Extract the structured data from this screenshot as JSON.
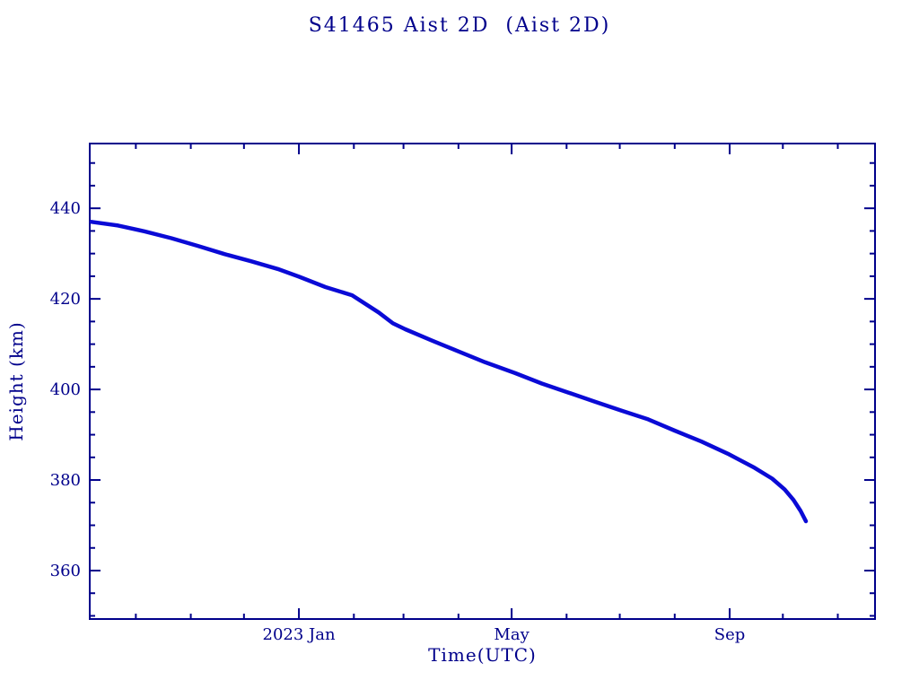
{
  "title": "S41465 Aist 2D  (Aist 2D)",
  "colors": {
    "background": "#ffffff",
    "axis": "#00008b",
    "text": "#00008b",
    "line": "#0a0ad6"
  },
  "chart_data": {
    "type": "line",
    "title": "S41465 Aist 2D  (Aist 2D)",
    "xlabel": "Time(UTC)",
    "ylabel": "Height (km)",
    "x_range": [
      "2022-09-05",
      "2023-11-22"
    ],
    "y_range": [
      349.3,
      454.3
    ],
    "y_ticks_major": [
      360,
      380,
      400,
      420,
      440
    ],
    "y_tick_minor_step": 5,
    "x_ticks_major": [
      {
        "date": "2023-01-01",
        "label": "2023 Jan"
      },
      {
        "date": "2023-05-01",
        "label": "May"
      },
      {
        "date": "2023-09-01",
        "label": "Sep"
      }
    ],
    "x_ticks_minor": [
      "2022-10-01",
      "2022-11-01",
      "2022-12-01",
      "2023-02-01",
      "2023-03-01",
      "2023-04-01",
      "2023-06-01",
      "2023-07-01",
      "2023-08-01",
      "2023-10-01",
      "2023-11-01"
    ],
    "grid": false,
    "legend": "none",
    "series": [
      {
        "name": "height_km",
        "points": [
          [
            "2022-09-06",
            437.0
          ],
          [
            "2022-09-21",
            436.2
          ],
          [
            "2022-10-06",
            434.9
          ],
          [
            "2022-10-21",
            433.4
          ],
          [
            "2022-11-05",
            431.7
          ],
          [
            "2022-11-20",
            429.9
          ],
          [
            "2022-12-05",
            428.3
          ],
          [
            "2022-12-20",
            426.6
          ],
          [
            "2023-01-01",
            424.9
          ],
          [
            "2023-01-16",
            422.6
          ],
          [
            "2023-01-31",
            420.8
          ],
          [
            "2023-02-15",
            417.0
          ],
          [
            "2023-02-23",
            414.6
          ],
          [
            "2023-03-02",
            413.3
          ],
          [
            "2023-03-17",
            410.8
          ],
          [
            "2023-04-01",
            408.4
          ],
          [
            "2023-04-16",
            406.0
          ],
          [
            "2023-05-03",
            403.6
          ],
          [
            "2023-05-18",
            401.3
          ],
          [
            "2023-06-02",
            399.3
          ],
          [
            "2023-06-17",
            397.3
          ],
          [
            "2023-07-02",
            395.3
          ],
          [
            "2023-07-17",
            393.4
          ],
          [
            "2023-08-01",
            390.9
          ],
          [
            "2023-08-16",
            388.5
          ],
          [
            "2023-08-31",
            385.8
          ],
          [
            "2023-09-15",
            382.7
          ],
          [
            "2023-09-25",
            380.3
          ],
          [
            "2023-10-02",
            377.9
          ],
          [
            "2023-10-07",
            375.6
          ],
          [
            "2023-10-11",
            373.2
          ],
          [
            "2023-10-14",
            370.9
          ]
        ]
      }
    ]
  }
}
